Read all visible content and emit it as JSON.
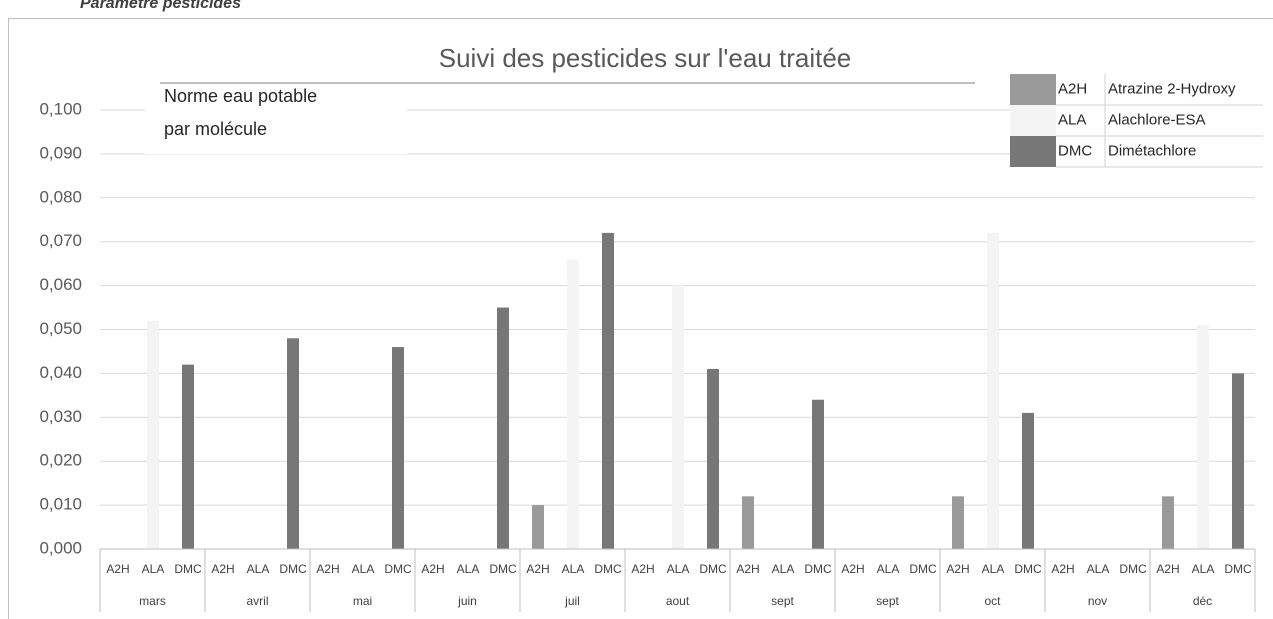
{
  "heading": "Paramètre pesticides",
  "chart_data": {
    "type": "bar",
    "title": "Suivi des pesticides sur l'eau traitée",
    "annotation": [
      "Norme eau potable",
      "par molécule"
    ],
    "categories": [
      "mars",
      "avril",
      "mai",
      "juin",
      "juil",
      "aout",
      "sept",
      "sept",
      "oct",
      "nov",
      "déc"
    ],
    "series": [
      {
        "name": "A2H",
        "full_name": "Atrazine 2-Hydroxy",
        "color": "#9a9a9a",
        "values": [
          null,
          null,
          null,
          null,
          0.01,
          null,
          0.012,
          null,
          0.012,
          null,
          0.012
        ]
      },
      {
        "name": "ALA",
        "full_name": "Alachlore-ESA",
        "color": "#f4f4f4",
        "values": [
          0.052,
          null,
          null,
          null,
          0.066,
          0.06,
          null,
          null,
          0.072,
          null,
          0.051
        ]
      },
      {
        "name": "DMC",
        "full_name": "Dimétachlore",
        "color": "#777777",
        "values": [
          0.042,
          0.048,
          0.046,
          0.055,
          0.072,
          0.041,
          0.034,
          null,
          0.031,
          null,
          0.04
        ]
      }
    ],
    "ylim": [
      0,
      0.1
    ],
    "yticks": [
      {
        "value": 0,
        "label": "0,000"
      },
      {
        "value": 0.01,
        "label": "0,010"
      },
      {
        "value": 0.02,
        "label": "0,020"
      },
      {
        "value": 0.03,
        "label": "0,030"
      },
      {
        "value": 0.04,
        "label": "0,040"
      },
      {
        "value": 0.05,
        "label": "0,050"
      },
      {
        "value": 0.06,
        "label": "0,060"
      },
      {
        "value": 0.07,
        "label": "0,070"
      },
      {
        "value": 0.08,
        "label": "0,080"
      },
      {
        "value": 0.09,
        "label": "0,090"
      },
      {
        "value": 0.1,
        "label": "0,100"
      }
    ],
    "grid": true
  }
}
